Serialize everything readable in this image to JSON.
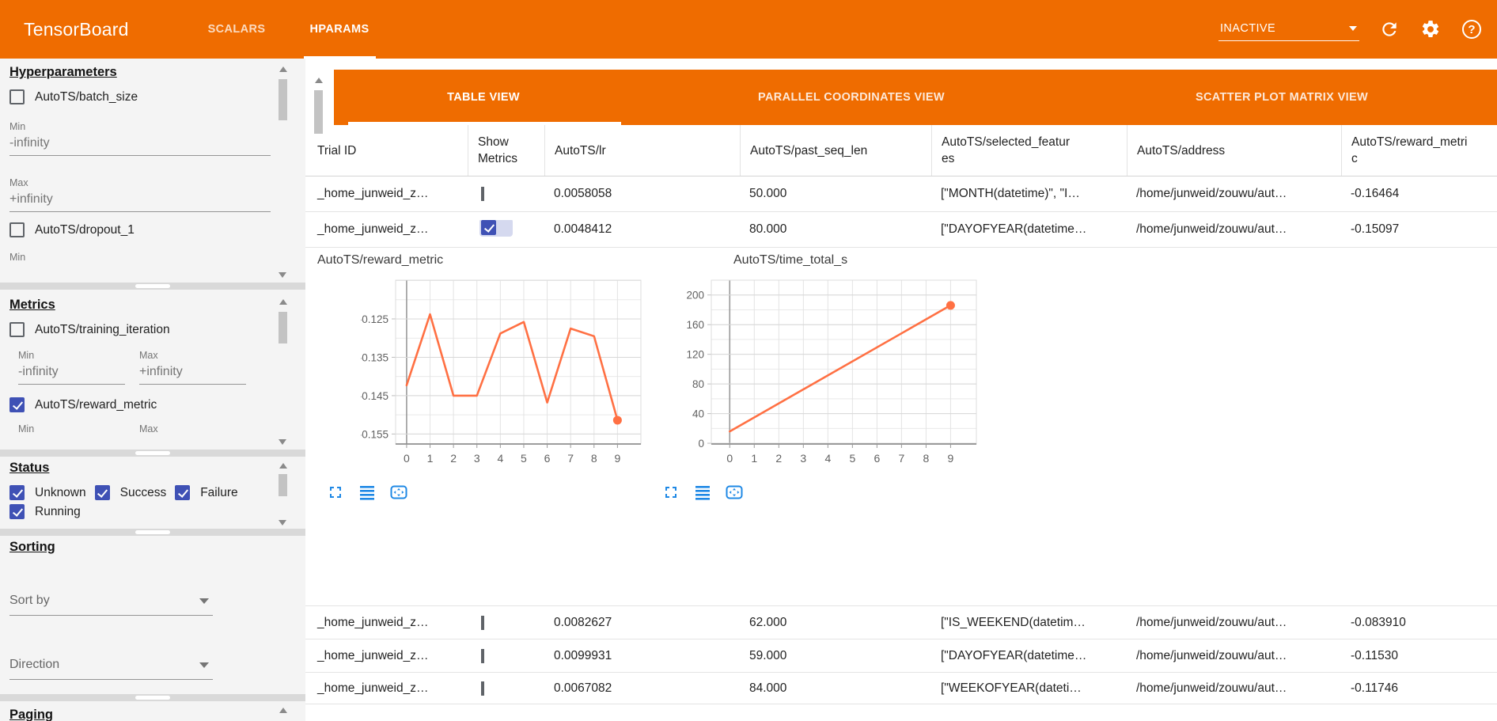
{
  "appbar": {
    "title": "TensorBoard",
    "nav_tabs": [
      {
        "label": "SCALARS",
        "active": false
      },
      {
        "label": "HPARAMS",
        "active": true
      }
    ],
    "run_status": {
      "value": "INACTIVE"
    }
  },
  "view_tabs": [
    {
      "label": "TABLE VIEW",
      "active": true
    },
    {
      "label": "PARALLEL COORDINATES VIEW",
      "active": false
    },
    {
      "label": "SCATTER PLOT MATRIX VIEW",
      "active": false
    }
  ],
  "sidebar": {
    "hyperparameters": {
      "heading": "Hyperparameters",
      "batch_size": {
        "label": "AutoTS/batch_size",
        "checked": false
      },
      "min_label": "Min",
      "min_value": "-infinity",
      "max_label": "Max",
      "max_value": "+infinity",
      "dropout_1": {
        "label": "AutoTS/dropout_1",
        "checked": false
      },
      "min_label_2": "Min"
    },
    "metrics": {
      "heading": "Metrics",
      "training_iteration": {
        "label": "AutoTS/training_iteration",
        "checked": false
      },
      "min_label": "Min",
      "max_label": "Max",
      "min_value": "-infinity",
      "max_value": "+infinity",
      "reward_metric": {
        "label": "AutoTS/reward_metric",
        "checked": true
      },
      "min_label_2": "Min",
      "max_label_2": "Max"
    },
    "status": {
      "heading": "Status",
      "options": [
        {
          "label": "Unknown",
          "checked": true
        },
        {
          "label": "Success",
          "checked": true
        },
        {
          "label": "Failure",
          "checked": true
        },
        {
          "label": "Running",
          "checked": true
        }
      ]
    },
    "sorting": {
      "heading": "Sorting",
      "sort_by": "Sort by",
      "direction": "Direction"
    },
    "paging": {
      "heading": "Paging"
    }
  },
  "table": {
    "columns": [
      "Trial ID",
      "Show Metrics",
      "AutoTS/lr",
      "AutoTS/past_seq_len",
      "AutoTS/selected_features",
      "AutoTS/address",
      "AutoTS/reward_metric"
    ],
    "rows": [
      {
        "trial_id": "_home_junweid_z…",
        "show_metrics": false,
        "lr": "0.0058058",
        "past_seq_len": "50.000",
        "selected_features": "[\"MONTH(datetime)\", \"I…",
        "address": "/home/junweid/zouwu/aut…",
        "reward_metric": "-0.16464"
      },
      {
        "trial_id": "_home_junweid_z…",
        "show_metrics": true,
        "lr": "0.0048412",
        "past_seq_len": "80.000",
        "selected_features": "[\"DAYOFYEAR(datetime…",
        "address": "/home/junweid/zouwu/aut…",
        "reward_metric": "-0.15097"
      },
      {
        "trial_id": "_home_junweid_z…",
        "show_metrics": false,
        "lr": "0.0082627",
        "past_seq_len": "62.000",
        "selected_features": "[\"IS_WEEKEND(datetim…",
        "address": "/home/junweid/zouwu/aut…",
        "reward_metric": "-0.083910"
      },
      {
        "trial_id": "_home_junweid_z…",
        "show_metrics": false,
        "lr": "0.0099931",
        "past_seq_len": "59.000",
        "selected_features": "[\"DAYOFYEAR(datetime…",
        "address": "/home/junweid/zouwu/aut…",
        "reward_metric": "-0.11530"
      },
      {
        "trial_id": "_home_junweid_z…",
        "show_metrics": false,
        "lr": "0.0067082",
        "past_seq_len": "84.000",
        "selected_features": "[\"WEEKOFYEAR(dateti…",
        "address": "/home/junweid/zouwu/aut…",
        "reward_metric": "-0.11746"
      }
    ]
  },
  "chart_data": [
    {
      "type": "line",
      "title": "AutoTS/reward_metric",
      "x": [
        0,
        1,
        2,
        3,
        4,
        5,
        6,
        7,
        8,
        9
      ],
      "values": [
        -0.1423,
        -0.1238,
        -0.145,
        -0.145,
        -0.1288,
        -0.1258,
        -0.1468,
        -0.1275,
        -0.1295,
        -0.1514
      ],
      "xlim": [
        -0.47,
        10.0
      ],
      "ylim": [
        -0.1576,
        -0.1149
      ],
      "yticks": [
        -0.125,
        -0.135,
        -0.145,
        -0.155
      ],
      "ytick_labels": [
        "-0.125",
        "-0.135",
        "-0.145",
        "-0.155"
      ],
      "xticks": [
        0,
        1,
        2,
        3,
        4,
        5,
        6,
        7,
        8,
        9
      ],
      "y_minor_step": 0.005,
      "grid": true,
      "end_dot": true,
      "line_color": "#ff7043"
    },
    {
      "type": "line",
      "title": "AutoTS/time_total_s",
      "x": [
        0,
        9
      ],
      "values": [
        16,
        186
      ],
      "xlim": [
        -0.75,
        10.05
      ],
      "ylim": [
        -1,
        220
      ],
      "yticks": [
        200,
        160,
        120,
        80,
        40,
        0
      ],
      "ytick_labels": [
        "200",
        "160",
        "120",
        "80",
        "40",
        "0"
      ],
      "xticks": [
        0,
        1,
        2,
        3,
        4,
        5,
        6,
        7,
        8,
        9
      ],
      "y_minor_step": 20,
      "grid": true,
      "end_dot": true,
      "line_color": "#ff7043"
    }
  ],
  "colors": {
    "toolbar_orange": "#ef6c00",
    "accent_indigo": "#3f51b5",
    "chart_line": "#ff7043",
    "icon_blue": "#1e88e5"
  }
}
